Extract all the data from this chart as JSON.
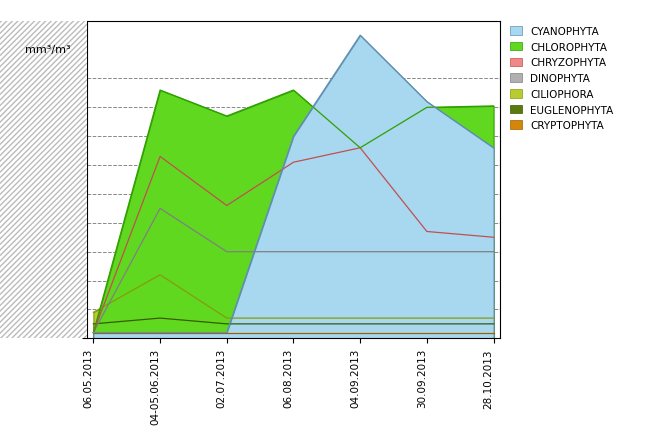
{
  "dates": [
    "06.05.2013",
    "04-05.06.2013",
    "02.07.2013",
    "06.08.2013",
    "04.09.2013",
    "30.09.2013",
    "28.10.2013"
  ],
  "series_order": [
    "CRYPTOPHYTA",
    "EUGLENOPHYTA",
    "CILIOPHORA",
    "DINOPHYTA",
    "CHRYZOPHYTA",
    "CHLOROPHYTA",
    "CYANOPHYTA"
  ],
  "series": {
    "CRYPTOPHYTA": [
      200,
      200,
      200,
      200,
      200,
      200,
      200
    ],
    "EUGLENOPHYTA": [
      500,
      700,
      500,
      500,
      500,
      500,
      500
    ],
    "CILIOPHORA": [
      900,
      2200,
      700,
      700,
      700,
      700,
      700
    ],
    "DINOPHYTA": [
      200,
      4500,
      3000,
      3000,
      3000,
      3000,
      3000
    ],
    "CHRYZOPHYTA": [
      200,
      6300,
      4600,
      6100,
      6600,
      3700,
      3500
    ],
    "CHLOROPHYTA": [
      200,
      8600,
      7700,
      8600,
      6600,
      8000,
      8050
    ],
    "CYANOPHYTA": [
      200,
      200,
      200,
      7000,
      10500,
      8200,
      6600
    ]
  },
  "colors": {
    "CRYPTOPHYTA": "#D4860A",
    "EUGLENOPHYTA": "#5A7A10",
    "CILIOPHORA": "#B8CC30",
    "DINOPHYTA": "#B0B0B0",
    "CHRYZOPHYTA": "#F08888",
    "CHLOROPHYTA": "#60D820",
    "CYANOPHYTA": "#A8D8F0"
  },
  "edge_colors": {
    "CRYPTOPHYTA": "#A06000",
    "EUGLENOPHYTA": "#3A5A00",
    "CILIOPHORA": "#889A10",
    "DINOPHYTA": "#808080",
    "CHRYZOPHYTA": "#C05050",
    "CHLOROPHYTA": "#30A000",
    "CYANOPHYTA": "#6090B0"
  },
  "ylim": [
    0,
    11000
  ],
  "yticks": [
    0,
    1000,
    2000,
    3000,
    4000,
    5000,
    6000,
    7000,
    8000,
    9000
  ],
  "ylabel": "mm³/m³",
  "legend_order": [
    "CYANOPHYTA",
    "CHLOROPHYTA",
    "CHRYZOPHYTA",
    "DINOPHYTA",
    "CILIOPHORA",
    "EUGLENOPHYTA",
    "CRYPTOPHYTA"
  ]
}
